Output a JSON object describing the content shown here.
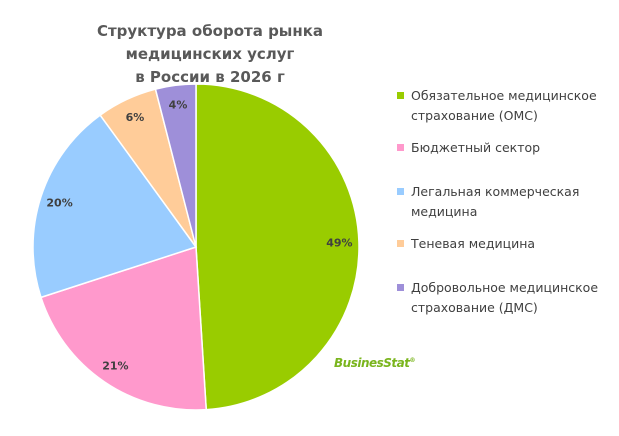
{
  "chart_data": {
    "type": "pie",
    "title": "Структура оборота рынка медицинских услуг в России в 2026 г",
    "title_lines": [
      "Структура оборота рынка медицинских услуг",
      "в России в 2026 г"
    ],
    "start_angle": "top",
    "direction": "clockwise",
    "legend_position": "right",
    "slices": [
      {
        "label": "Обязательное медицинское страхование (ОМС)",
        "value": 49,
        "display": "49%",
        "color": "#99cc00"
      },
      {
        "label": "Бюджетный сектор",
        "value": 21,
        "display": "21%",
        "color": "#ff99cc"
      },
      {
        "label": "Легальная коммерческая медицина",
        "value": 20,
        "display": "20%",
        "color": "#99ccff"
      },
      {
        "label": "Теневая медицина",
        "value": 6,
        "display": "6%",
        "color": "#ffcc99"
      },
      {
        "label": "Добровольное медицинское страхование (ДМС)",
        "value": 4,
        "display": "4%",
        "color": "#9e8fd9"
      }
    ]
  },
  "watermark": "BusinesStat"
}
